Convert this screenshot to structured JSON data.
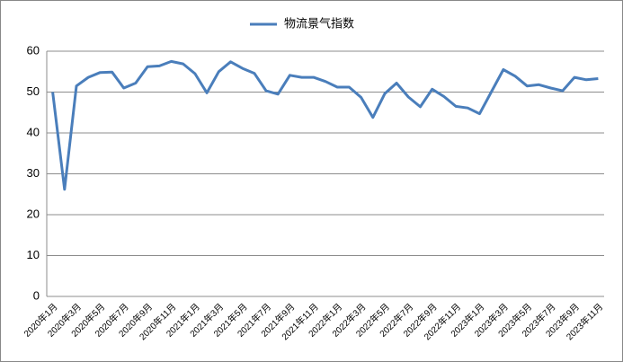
{
  "chart_data": {
    "type": "line",
    "series": [
      {
        "name": "物流景气指数",
        "color": "#4a7ebb",
        "values": [
          50,
          26.2,
          51.5,
          53.6,
          54.8,
          54.9,
          51,
          52.2,
          56.2,
          56.4,
          57.5,
          56.9,
          54.5,
          49.8,
          55,
          57.4,
          55.8,
          54.6,
          50.3,
          49.5,
          54.1,
          53.6,
          53.6,
          52.6,
          51.2,
          51.2,
          48.7,
          43.8,
          49.6,
          52.2,
          48.8,
          46.4,
          50.7,
          48.9,
          46.5,
          46.1,
          44.7,
          50.1,
          55.5,
          53.9,
          51.5,
          51.8,
          51,
          50.3,
          53.6,
          53,
          53.3
        ]
      }
    ],
    "categories": [
      "2020年1月",
      null,
      "2020年3月",
      null,
      "2020年5月",
      null,
      "2020年7月",
      null,
      "2020年9月",
      null,
      "2020年11月",
      null,
      "2021年1月",
      null,
      "2021年3月",
      null,
      "2021年5月",
      null,
      "2021年7月",
      null,
      "2021年9月",
      null,
      "2021年11月",
      null,
      "2022年1月",
      null,
      "2022年3月",
      null,
      "2022年5月",
      null,
      "2022年7月",
      null,
      "2022年9月",
      null,
      "2022年11月",
      null,
      "2023年1月",
      null,
      "2023年3月",
      null,
      "2023年5月",
      null,
      "2023年7月",
      null,
      "2023年9月",
      null,
      "2023年11月"
    ],
    "ylim": [
      0,
      60
    ],
    "yticks": [
      0,
      10,
      20,
      30,
      40,
      50,
      60
    ],
    "grid": true,
    "legend": "top"
  }
}
